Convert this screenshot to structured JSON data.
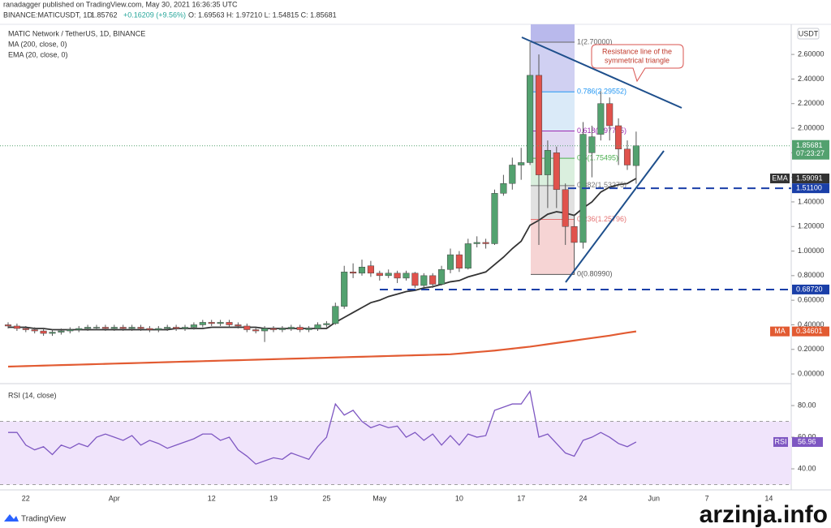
{
  "header": {
    "publisher": "ranadagger published on TradingView.com, May 30, 2021 16:36:35 UTC",
    "symbol": "BINANCE:MATICUSDT, 1D",
    "last": "1.85762",
    "change": "+0.16209 (+9.56%)",
    "ohlc": "O: 1.69563 H: 1.97210 L: 1.54815 C: 1.85681"
  },
  "annotation": [
    "Resistance line of the",
    "symmetrical triangle"
  ],
  "footer": "TradingView",
  "watermark": "arzinja.info",
  "chart_data": [
    {
      "type": "candlestick",
      "title": "MATIC Network / TetherUS, 1D, BINANCE",
      "currency": "USDT",
      "countdown": "07:23:27",
      "categories": [
        null,
        null,
        "22",
        null,
        null,
        null,
        null,
        null,
        null,
        null,
        null,
        null,
        "Apr",
        null,
        null,
        null,
        null,
        null,
        null,
        null,
        null,
        null,
        null,
        "12",
        null,
        null,
        null,
        null,
        null,
        null,
        "19",
        null,
        null,
        null,
        null,
        null,
        "25",
        null,
        null,
        null,
        null,
        null,
        "May",
        null,
        null,
        null,
        null,
        null,
        null,
        null,
        null,
        "10",
        null,
        null,
        null,
        null,
        null,
        null,
        "17",
        null,
        null,
        null,
        null,
        null,
        null,
        "24",
        null,
        null,
        null,
        null,
        null,
        null,
        null,
        "Jun",
        null,
        null,
        null,
        null,
        null,
        "7",
        null,
        null,
        null,
        null,
        null,
        null,
        "14",
        null,
        null
      ],
      "open": [
        0.4,
        0.39,
        0.37,
        0.36,
        0.35,
        0.33,
        0.34,
        0.35,
        0.36,
        0.37,
        0.38,
        0.38,
        0.37,
        0.38,
        0.37,
        0.38,
        0.37,
        0.36,
        0.37,
        0.38,
        0.37,
        0.38,
        0.4,
        0.42,
        0.41,
        0.42,
        0.4,
        0.39,
        0.36,
        0.35,
        0.37,
        0.36,
        0.37,
        0.38,
        0.36,
        0.37,
        0.4,
        0.41,
        0.55,
        0.83,
        0.82,
        0.88,
        0.82,
        0.8,
        0.82,
        0.78,
        0.82,
        0.72,
        0.8,
        0.73,
        0.85,
        0.97,
        0.86,
        1.06,
        1.07,
        1.06,
        1.47,
        1.55,
        1.7,
        1.72,
        2.43,
        1.62,
        1.8,
        1.5,
        1.2,
        1.07,
        1.8,
        1.95,
        2.2,
        2.02,
        1.83,
        1.69563,
        null,
        null,
        null,
        null,
        null,
        null,
        null,
        null,
        null,
        null,
        null,
        null,
        null,
        null,
        null,
        null,
        null
      ],
      "high": [
        0.42,
        0.41,
        0.39,
        0.38,
        0.37,
        0.36,
        0.37,
        0.38,
        0.39,
        0.4,
        0.4,
        0.4,
        0.4,
        0.4,
        0.4,
        0.4,
        0.39,
        0.39,
        0.4,
        0.4,
        0.4,
        0.42,
        0.44,
        0.44,
        0.44,
        0.44,
        0.42,
        0.41,
        0.38,
        0.39,
        0.39,
        0.39,
        0.4,
        0.4,
        0.39,
        0.42,
        0.43,
        0.58,
        0.88,
        0.9,
        0.93,
        0.92,
        0.84,
        0.85,
        0.84,
        0.84,
        0.83,
        0.82,
        0.82,
        0.88,
        1.02,
        1.0,
        1.1,
        1.12,
        1.1,
        1.5,
        1.62,
        1.76,
        1.84,
        2.7,
        2.6,
        1.9,
        1.85,
        1.55,
        1.3,
        2.05,
        2.02,
        2.3,
        2.25,
        2.08,
        1.9,
        1.9721,
        null,
        null,
        null,
        null,
        null,
        null,
        null,
        null,
        null,
        null,
        null,
        null,
        null,
        null,
        null,
        null,
        null
      ],
      "low": [
        0.37,
        0.35,
        0.34,
        0.33,
        0.31,
        0.31,
        0.32,
        0.33,
        0.34,
        0.35,
        0.36,
        0.35,
        0.35,
        0.35,
        0.35,
        0.35,
        0.34,
        0.34,
        0.35,
        0.35,
        0.35,
        0.36,
        0.38,
        0.39,
        0.39,
        0.38,
        0.37,
        0.34,
        0.33,
        0.26,
        0.34,
        0.34,
        0.35,
        0.34,
        0.34,
        0.35,
        0.38,
        0.4,
        0.53,
        0.78,
        0.8,
        0.79,
        0.76,
        0.78,
        0.74,
        0.76,
        0.7,
        0.7,
        0.7,
        0.72,
        0.82,
        0.83,
        0.85,
        1.03,
        1.02,
        1.05,
        1.45,
        1.5,
        1.58,
        1.7,
        1.05,
        1.35,
        1.35,
        1.05,
        0.81,
        1.02,
        1.6,
        1.9,
        1.9,
        1.7,
        1.66,
        1.54815,
        null,
        null,
        null,
        null,
        null,
        null,
        null,
        null,
        null,
        null,
        null,
        null,
        null,
        null,
        null,
        null,
        null
      ],
      "close": [
        0.39,
        0.37,
        0.36,
        0.35,
        0.33,
        0.34,
        0.35,
        0.36,
        0.37,
        0.38,
        0.38,
        0.37,
        0.38,
        0.37,
        0.38,
        0.37,
        0.36,
        0.37,
        0.38,
        0.37,
        0.38,
        0.4,
        0.42,
        0.41,
        0.42,
        0.4,
        0.39,
        0.36,
        0.35,
        0.37,
        0.36,
        0.37,
        0.38,
        0.36,
        0.37,
        0.4,
        0.41,
        0.55,
        0.83,
        0.82,
        0.87,
        0.82,
        0.8,
        0.82,
        0.78,
        0.82,
        0.72,
        0.8,
        0.73,
        0.85,
        0.97,
        0.86,
        1.06,
        1.07,
        1.06,
        1.47,
        1.55,
        1.7,
        1.72,
        2.43,
        1.62,
        1.82,
        1.5,
        1.2,
        1.07,
        1.95,
        1.93,
        2.2,
        2.02,
        1.83,
        1.7,
        1.85681,
        null,
        null,
        null,
        null,
        null,
        null,
        null,
        null,
        null,
        null,
        null,
        null,
        null,
        null,
        null,
        null,
        null
      ],
      "up_color": "#53a16f",
      "down_color": "#e0524c",
      "lines": [
        {
          "name": "MA (200, close, 0)",
          "tag": "MA",
          "color": "#e25b32",
          "values": [
            0.06,
            0.062,
            0.064,
            0.066,
            0.068,
            0.07,
            0.072,
            0.074,
            0.076,
            0.078,
            0.08,
            0.082,
            0.084,
            0.086,
            0.088,
            0.09,
            0.092,
            0.094,
            0.096,
            0.098,
            0.1,
            0.102,
            0.104,
            0.106,
            0.108,
            0.11,
            0.112,
            0.114,
            0.116,
            0.118,
            0.12,
            0.122,
            0.124,
            0.126,
            0.128,
            0.13,
            0.132,
            0.134,
            0.136,
            0.138,
            0.14,
            0.142,
            0.144,
            0.146,
            0.148,
            0.15,
            0.152,
            0.154,
            0.156,
            0.158,
            0.16,
            0.166,
            0.172,
            0.178,
            0.184,
            0.19,
            0.198,
            0.206,
            0.214,
            0.222,
            0.232,
            0.242,
            0.252,
            0.262,
            0.272,
            0.282,
            0.292,
            0.302,
            0.312,
            0.324,
            0.336,
            0.34601,
            null,
            null,
            null,
            null,
            null,
            null,
            null,
            null,
            null,
            null,
            null,
            null,
            null,
            null,
            null,
            null,
            null
          ]
        },
        {
          "name": "EMA (20, close, 0)",
          "tag": "EMA",
          "color": "#333333",
          "values": [
            0.38,
            0.38,
            0.38,
            0.37,
            0.37,
            0.36,
            0.36,
            0.36,
            0.36,
            0.36,
            0.36,
            0.36,
            0.36,
            0.36,
            0.36,
            0.36,
            0.36,
            0.36,
            0.36,
            0.37,
            0.37,
            0.37,
            0.37,
            0.38,
            0.38,
            0.38,
            0.38,
            0.38,
            0.38,
            0.37,
            0.37,
            0.37,
            0.37,
            0.37,
            0.37,
            0.37,
            0.37,
            0.42,
            0.46,
            0.5,
            0.54,
            0.58,
            0.6,
            0.63,
            0.65,
            0.67,
            0.68,
            0.7,
            0.71,
            0.73,
            0.75,
            0.76,
            0.79,
            0.81,
            0.83,
            0.89,
            0.95,
            1.02,
            1.08,
            1.21,
            1.25,
            1.3,
            1.32,
            1.31,
            1.29,
            1.35,
            1.4,
            1.48,
            1.52,
            1.54,
            1.55,
            1.59091,
            null,
            null,
            null,
            null,
            null,
            null,
            null,
            null,
            null,
            null,
            null,
            null,
            null,
            null,
            null,
            null,
            null
          ]
        }
      ],
      "fib_levels": [
        {
          "value": 2.7,
          "label": "1(2.70000)"
        },
        {
          "value": 2.29552,
          "label": "0.786(2.29552)"
        },
        {
          "value": 1.97715,
          "label": "0.618(1.97715)"
        },
        {
          "value": 1.75495,
          "label": "0.5(1.75495)"
        },
        {
          "value": 1.53275,
          "label": "0.382(1.53275)"
        },
        {
          "value": 1.25796,
          "label": "0.236(1.25796)"
        },
        {
          "value": 0.8099,
          "label": "0(0.80990)"
        }
      ],
      "hlines": [
        {
          "value": 1.511,
          "label": "1.51100"
        },
        {
          "value": 0.6872,
          "label": "0.68720"
        }
      ],
      "ylim": [
        -0.059,
        2.845
      ],
      "yticks": [
        {
          "value": 0,
          "label": "0.00000"
        },
        {
          "value": 0.2,
          "label": "0.20000"
        },
        {
          "value": 0.4,
          "label": "0.40000"
        },
        {
          "value": 0.6,
          "label": "0.60000"
        },
        {
          "value": 0.8,
          "label": "0.80000"
        },
        {
          "value": 1,
          "label": "1.00000"
        },
        {
          "value": 1.2,
          "label": "1.20000"
        },
        {
          "value": 1.4,
          "label": "1.40000"
        },
        {
          "value": 1.6,
          "label": "1.60000"
        },
        {
          "value": 1.8,
          "label": "1.80000"
        },
        {
          "value": 2,
          "label": "2.00000"
        },
        {
          "value": 2.2,
          "label": "2.20000"
        },
        {
          "value": 2.4,
          "label": "2.40000"
        },
        {
          "value": 2.6,
          "label": "2.60000"
        }
      ]
    },
    {
      "type": "line",
      "title": "RSI (14, close)",
      "tag": "RSI",
      "color": "#7e57c2",
      "band": [
        30,
        70
      ],
      "band_color": "#f0e4fb",
      "values": [
        63,
        63,
        55,
        52,
        54,
        49,
        55,
        53,
        56,
        54,
        60,
        62,
        60,
        58,
        61,
        55,
        58,
        56,
        53,
        55,
        57,
        59,
        62,
        62,
        58,
        60,
        52,
        48,
        43,
        45,
        47,
        46,
        50,
        48,
        46,
        54,
        60,
        81,
        74,
        77,
        70,
        66,
        68,
        66,
        67,
        60,
        63,
        58,
        62,
        55,
        61,
        55,
        62,
        60,
        61,
        77,
        79,
        81,
        81,
        89,
        60,
        62,
        56,
        50,
        48,
        58,
        60,
        63,
        60,
        56,
        54,
        56.96,
        null,
        null,
        null,
        null,
        null,
        null,
        null,
        null,
        null,
        null,
        null,
        null,
        null,
        null,
        null,
        null,
        null
      ],
      "ylim": [
        27.2,
        91.3
      ],
      "yticks": [
        {
          "value": 40,
          "label": "40.00"
        },
        {
          "value": 60,
          "label": "60.00"
        },
        {
          "value": 80,
          "label": "80.00"
        }
      ]
    }
  ]
}
